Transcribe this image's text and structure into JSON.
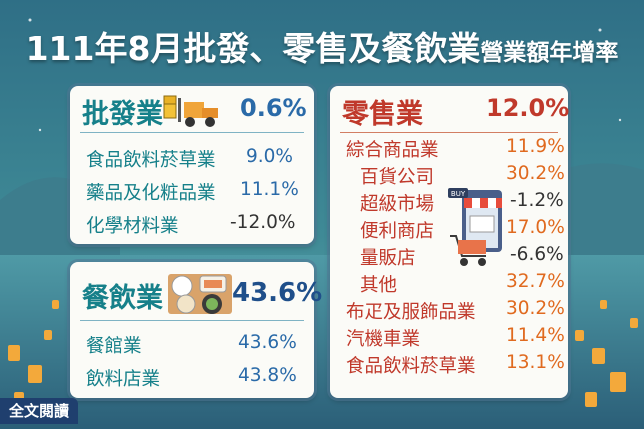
{
  "title": {
    "main": "111年8月批發、零售及餐飲業",
    "suffix": "營業額年增率"
  },
  "wholesale": {
    "name": "批發業",
    "rate": "0.6%",
    "items": [
      {
        "label": "食品飲料菸草業",
        "value": "9.0%"
      },
      {
        "label": "藥品及化粧品業",
        "value": "11.1%"
      },
      {
        "label": "化學材料業",
        "value": "-12.0%"
      }
    ]
  },
  "food": {
    "name": "餐飲業",
    "rate": "43.6%",
    "items": [
      {
        "label": "餐館業",
        "value": "43.6%"
      },
      {
        "label": "飲料店業",
        "value": "43.8%"
      }
    ]
  },
  "retail": {
    "name": "零售業",
    "rate": "12.0%",
    "items": [
      {
        "label": "綜合商品業",
        "value": "11.9%"
      },
      {
        "label": "百貨公司",
        "value": "30.2%"
      },
      {
        "label": "超級市場",
        "value": "-1.2%"
      },
      {
        "label": "便利商店",
        "value": "17.0%"
      },
      {
        "label": "量販店",
        "value": "-6.6%"
      },
      {
        "label": "其他",
        "value": "32.7%"
      },
      {
        "label": "布疋及服飾品業",
        "value": "30.2%"
      },
      {
        "label": "汽機車業",
        "value": "11.4%"
      },
      {
        "label": "食品飲料菸草業",
        "value": "13.1%"
      }
    ]
  },
  "store_sign": "BUY",
  "read_more": "全文閱讀",
  "colors": {
    "teal": "#16808a",
    "blue": "#2a6aa8",
    "red": "#c0392b",
    "orange": "#e06a1f"
  },
  "icons": [
    "forklift-icon",
    "food-tray-icon",
    "shop-cart-icon",
    "lantern-icon"
  ]
}
